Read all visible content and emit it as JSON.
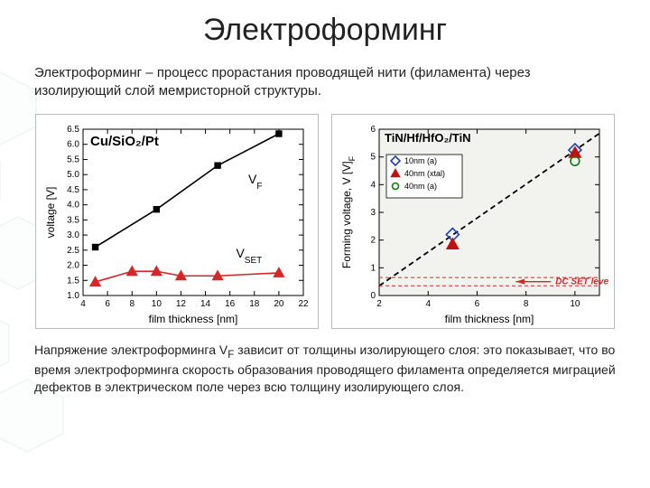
{
  "title": "Электроформинг",
  "intro": "Электроформинг – процесс прорастания проводящей нити (филамента) через изолирующий слой мемристорной структуры.",
  "outro_parts": {
    "p1": "Напряжение электроформинга V",
    "sub": "F",
    "p2": " зависит от толщины изолирующего слоя: это показывает, что во время электроформинга скорость образования проводящего филамента определяется миграцией дефектов в электрическом поле через всю толщину изолирующего слоя."
  },
  "chartA": {
    "type": "scatter-line",
    "plot_title": "Cu/SiO₂/Pt",
    "xlabel": "film thickness [nm]",
    "ylabel": "voltage [V]",
    "title_fontsize": 15,
    "label_fontsize": 12,
    "tick_fontsize": 10,
    "xlim": [
      4,
      22
    ],
    "ylim": [
      1.0,
      6.5
    ],
    "xtick_step": 2,
    "ytick_step": 0.5,
    "background": "#ffffff",
    "axis_color": "#000000",
    "series": [
      {
        "name": "VF",
        "label": "V_F",
        "marker": "square",
        "marker_size": 6,
        "color": "#000000",
        "line": true,
        "line_width": 1.6,
        "points": [
          [
            5,
            2.6
          ],
          [
            10,
            3.85
          ],
          [
            15,
            5.3
          ],
          [
            20,
            6.35
          ]
        ]
      },
      {
        "name": "VSET",
        "label": "V_SET",
        "marker": "triangle",
        "marker_size": 6,
        "color": "#d62728",
        "line": true,
        "line_width": 1.6,
        "points": [
          [
            5,
            1.45
          ],
          [
            8,
            1.8
          ],
          [
            10,
            1.8
          ],
          [
            12,
            1.65
          ],
          [
            15,
            1.65
          ],
          [
            20,
            1.75
          ]
        ]
      }
    ]
  },
  "chartB": {
    "type": "scatter-line",
    "plot_title": "TiN/Hf/HfO₂/TiN",
    "xlabel": "film thickness [nm]",
    "ylabel": "Forming voltage, V_F [V]",
    "title_fontsize": 14,
    "label_fontsize": 12,
    "tick_fontsize": 10,
    "xlim": [
      2,
      11
    ],
    "ylim": [
      0,
      6
    ],
    "xtick_step": 2,
    "ytick_step": 1,
    "background": "#f2f2ee",
    "axis_color": "#000000",
    "dc_set": {
      "label": "DC SET level",
      "color": "#d62728",
      "y_center": 0.5,
      "y_half": 0.15,
      "dash": "4,3"
    },
    "fit_line": {
      "color": "#000000",
      "dash": "6,4",
      "points": [
        [
          2,
          0.35
        ],
        [
          11,
          5.85
        ]
      ],
      "width": 1.8
    },
    "legend": [
      {
        "marker": "diamond",
        "edge": "#1f3fbf",
        "fill": "none",
        "label": "10nm (a)"
      },
      {
        "marker": "triangle",
        "edge": "#c01111",
        "fill": "#c01111",
        "label": "40nm (xtal)"
      },
      {
        "marker": "circle",
        "edge": "#0a7f0a",
        "fill": "none",
        "label": "40nm (a)"
      }
    ],
    "series": [
      {
        "marker": "diamond",
        "edge": "#1f3fbf",
        "fill": "none",
        "size": 7,
        "points": [
          [
            5,
            2.2
          ],
          [
            10,
            5.25
          ]
        ]
      },
      {
        "marker": "triangle",
        "edge": "#c01111",
        "fill": "#c01111",
        "size": 7,
        "points": [
          [
            5,
            1.85
          ],
          [
            10,
            5.15
          ]
        ]
      },
      {
        "marker": "circle",
        "edge": "#0a7f0a",
        "fill": "none",
        "size": 7,
        "points": [
          [
            10,
            4.85
          ]
        ]
      }
    ]
  },
  "layout": {
    "title_fontsize": 34,
    "body_fontsize": 15,
    "outro_fontsize": 14,
    "text_color": "#222222"
  }
}
